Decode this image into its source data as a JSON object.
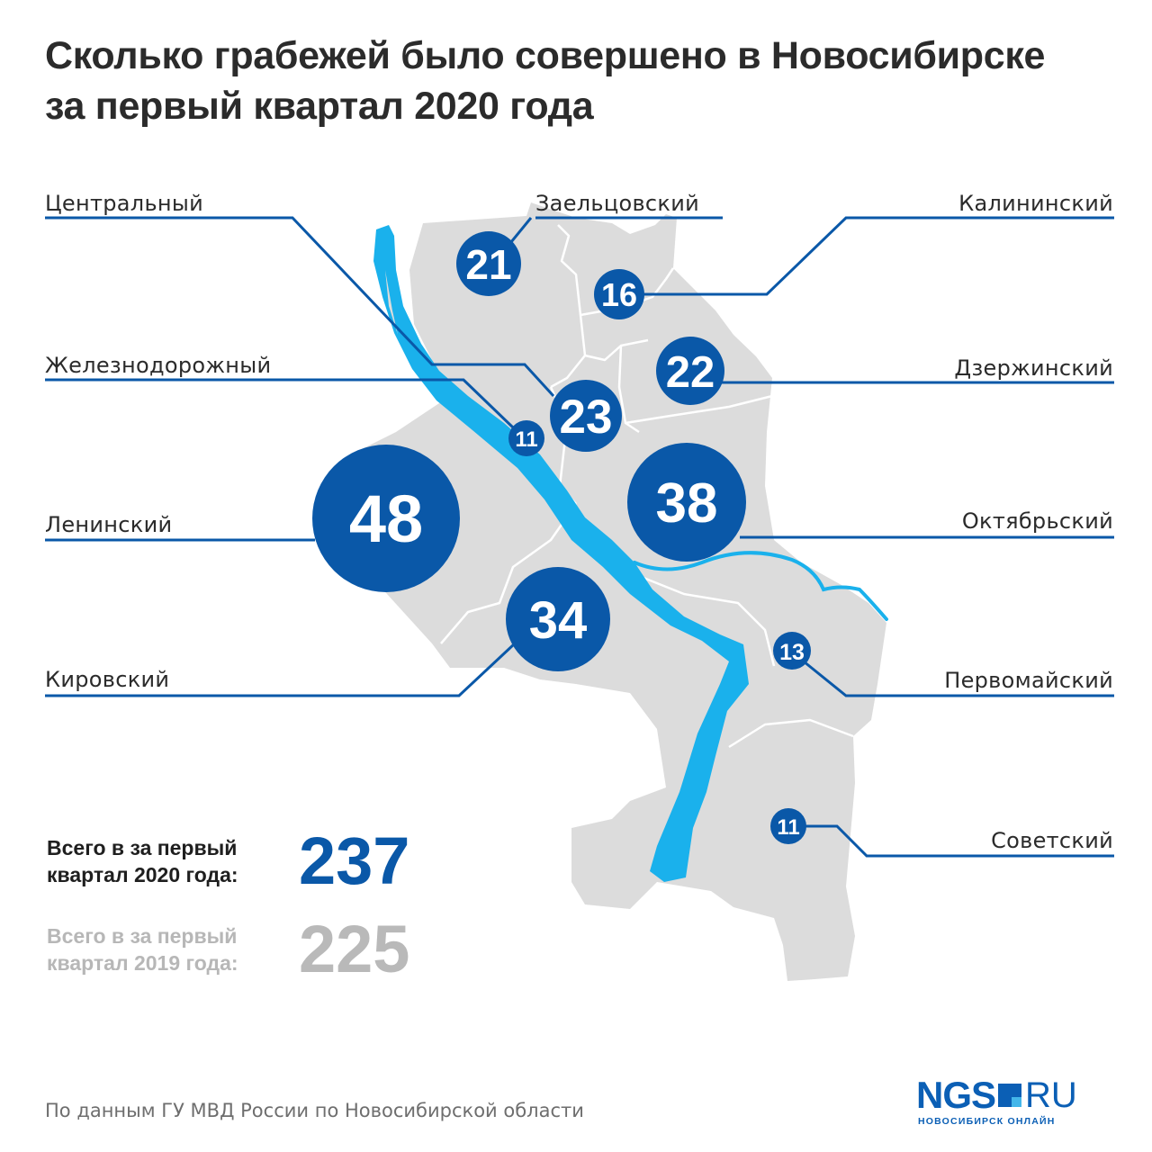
{
  "title": {
    "line1": "Сколько грабежей было совершено в Новосибирске",
    "line2": "за первый квартал 2020 года"
  },
  "colors": {
    "bubble": "#0a58a8",
    "river": "#1ab1ec",
    "land": "#dcdcdc",
    "leader": "#0a58a8"
  },
  "districts": [
    {
      "name": "Центральный",
      "value": 23
    },
    {
      "name": "Заельцовский",
      "value": 21
    },
    {
      "name": "Калининский",
      "value": 16
    },
    {
      "name": "Железнодорожный",
      "value": 11
    },
    {
      "name": "Дзержинский",
      "value": 22
    },
    {
      "name": "Ленинский",
      "value": 48
    },
    {
      "name": "Октябрьский",
      "value": 38
    },
    {
      "name": "Кировский",
      "value": 34
    },
    {
      "name": "Первомайский",
      "value": 13
    },
    {
      "name": "Советский",
      "value": 11
    }
  ],
  "totals": {
    "current": {
      "label_line1": "Всего в  за первый",
      "label_line2": "квартал 2020 года:",
      "value": "237"
    },
    "previous": {
      "label_line1": "Всего в  за первый",
      "label_line2": "квартал 2019 года:",
      "value": "225"
    }
  },
  "source": "По данным ГУ МВД России по Новосибирской области",
  "logo": {
    "brand": "NGS",
    "domain": "RU",
    "subtitle": "НОВОСИБИРСК ОНЛАЙН"
  }
}
